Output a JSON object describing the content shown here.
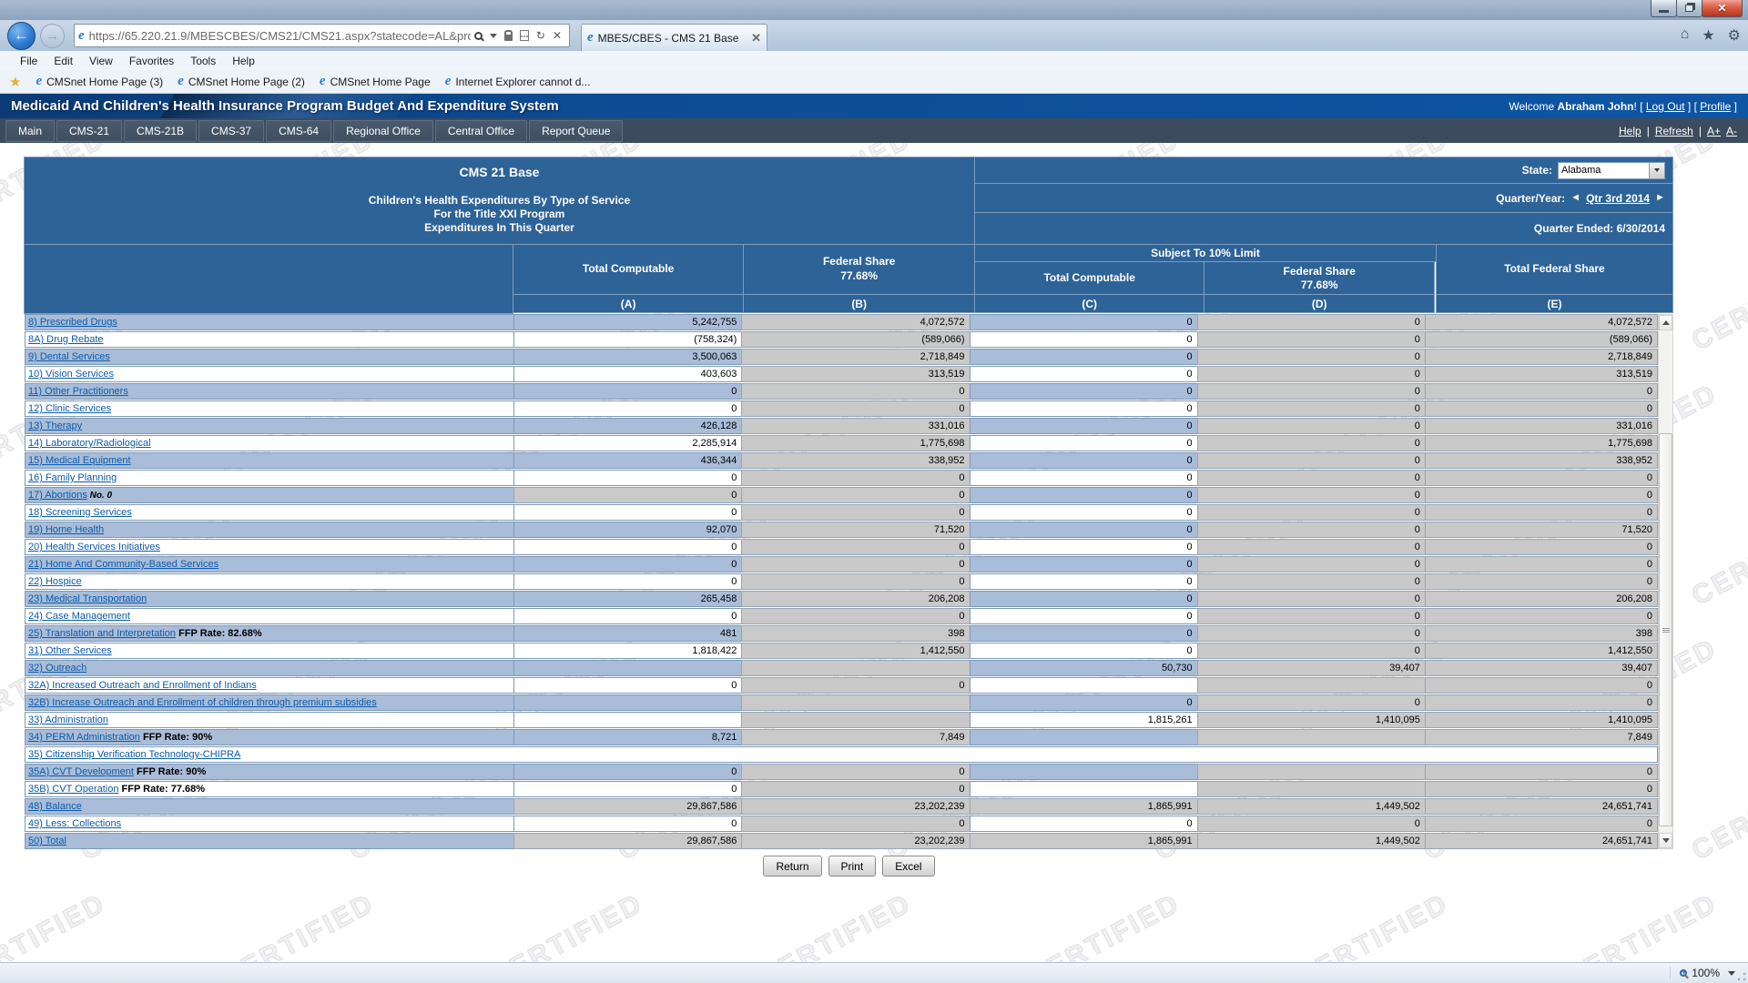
{
  "browser": {
    "url": "https://65.220.21.9/MBESCBES/CMS21/CMS21.aspx?statecode=AL&programco",
    "tab_title": "MBES/CBES - CMS 21 Base",
    "menu_items": [
      "File",
      "Edit",
      "View",
      "Favorites",
      "Tools",
      "Help"
    ],
    "favorites": [
      "CMSnet Home Page (3)",
      "CMSnet Home Page (2)",
      "CMSnet Home Page",
      "Internet Explorer cannot d..."
    ],
    "zoom_level": "100%"
  },
  "header": {
    "title": "Medicaid And Children's Health Insurance Program Budget And Expenditure System",
    "welcome_prefix": "Welcome",
    "user_name": "Abraham John",
    "exclaim": "!",
    "bracket_open": "[",
    "bracket_close": "]",
    "logout_label": "Log Out",
    "profile_label": "Profile"
  },
  "nav": {
    "items": [
      "Main",
      "CMS-21",
      "CMS-21B",
      "CMS-37",
      "CMS-64",
      "Regional Office",
      "Central Office",
      "Report Queue"
    ],
    "help_label": "Help",
    "separator": "|",
    "refresh_label": "Refresh",
    "font_increase": "A+",
    "font_decrease": "A-"
  },
  "report": {
    "title": "CMS 21 Base",
    "subtitle_line1": "Children's Health Expenditures By Type of Service",
    "subtitle_line2": "For the Title XXI Program",
    "subtitle_line3": "Expenditures In This Quarter",
    "state_label": "State:",
    "state_value": "Alabama",
    "quarter_label": "Quarter/Year:",
    "quarter_prev": "◄",
    "quarter_value": "Qtr 3rd 2014",
    "quarter_next": "►",
    "quarter_ended": "Quarter Ended: 6/30/2014",
    "subject_header": "Subject To 10% Limit",
    "col_total_computable": "Total Computable",
    "col_federal_share": "Federal Share",
    "ffp_rate": "77.68%",
    "col_total_federal_share": "Total Federal Share",
    "col_letters": [
      "(A)",
      "(B)",
      "(C)",
      "(D)",
      "(E)"
    ]
  },
  "table": {
    "rows": [
      {
        "label": "8) Prescribed Drugs",
        "cells": [
          {
            "v": "5,242,755",
            "k": "e"
          },
          {
            "v": "4,072,572",
            "k": "g"
          },
          {
            "v": "0",
            "k": "e"
          },
          {
            "v": "0",
            "k": "g"
          },
          {
            "v": "4,072,572",
            "k": "g"
          }
        ]
      },
      {
        "label": "8A) Drug Rebate",
        "cells": [
          {
            "v": "(758,324)",
            "k": "e"
          },
          {
            "v": "(589,066)",
            "k": "g"
          },
          {
            "v": "0",
            "k": "e"
          },
          {
            "v": "0",
            "k": "g"
          },
          {
            "v": "(589,066)",
            "k": "g"
          }
        ]
      },
      {
        "label": "9) Dental Services",
        "cells": [
          {
            "v": "3,500,063",
            "k": "e"
          },
          {
            "v": "2,718,849",
            "k": "g"
          },
          {
            "v": "0",
            "k": "e"
          },
          {
            "v": "0",
            "k": "g"
          },
          {
            "v": "2,718,849",
            "k": "g"
          }
        ]
      },
      {
        "label": "10) Vision Services",
        "cells": [
          {
            "v": "403,603",
            "k": "e"
          },
          {
            "v": "313,519",
            "k": "g"
          },
          {
            "v": "0",
            "k": "e"
          },
          {
            "v": "0",
            "k": "g"
          },
          {
            "v": "313,519",
            "k": "g"
          }
        ]
      },
      {
        "label": "11) Other Practitioners",
        "cells": [
          {
            "v": "0",
            "k": "e"
          },
          {
            "v": "0",
            "k": "g"
          },
          {
            "v": "0",
            "k": "e"
          },
          {
            "v": "0",
            "k": "g"
          },
          {
            "v": "0",
            "k": "g"
          }
        ]
      },
      {
        "label": "12) Clinic Services",
        "cells": [
          {
            "v": "0",
            "k": "e"
          },
          {
            "v": "0",
            "k": "g"
          },
          {
            "v": "0",
            "k": "e"
          },
          {
            "v": "0",
            "k": "g"
          },
          {
            "v": "0",
            "k": "g"
          }
        ]
      },
      {
        "label": "13) Therapy",
        "cells": [
          {
            "v": "426,128",
            "k": "e"
          },
          {
            "v": "331,016",
            "k": "g"
          },
          {
            "v": "0",
            "k": "e"
          },
          {
            "v": "0",
            "k": "g"
          },
          {
            "v": "331,016",
            "k": "g"
          }
        ]
      },
      {
        "label": "14) Laboratory/Radiological",
        "cells": [
          {
            "v": "2,285,914",
            "k": "e"
          },
          {
            "v": "1,775,698",
            "k": "g"
          },
          {
            "v": "0",
            "k": "e"
          },
          {
            "v": "0",
            "k": "g"
          },
          {
            "v": "1,775,698",
            "k": "g"
          }
        ]
      },
      {
        "label": "15) Medical Equipment",
        "cells": [
          {
            "v": "436,344",
            "k": "e"
          },
          {
            "v": "338,952",
            "k": "g"
          },
          {
            "v": "0",
            "k": "e"
          },
          {
            "v": "0",
            "k": "g"
          },
          {
            "v": "338,952",
            "k": "g"
          }
        ]
      },
      {
        "label": "16) Family Planning",
        "cells": [
          {
            "v": "0",
            "k": "e"
          },
          {
            "v": "0",
            "k": "g"
          },
          {
            "v": "0",
            "k": "e"
          },
          {
            "v": "0",
            "k": "g"
          },
          {
            "v": "0",
            "k": "g"
          }
        ]
      },
      {
        "label": "17) Abortions",
        "suffix": "No. 0",
        "cells": [
          {
            "v": "0",
            "k": "g"
          },
          {
            "v": "0",
            "k": "g"
          },
          {
            "v": "0",
            "k": "e"
          },
          {
            "v": "0",
            "k": "g"
          },
          {
            "v": "0",
            "k": "g"
          }
        ]
      },
      {
        "label": "18) Screening Services",
        "cells": [
          {
            "v": "0",
            "k": "e"
          },
          {
            "v": "0",
            "k": "g"
          },
          {
            "v": "0",
            "k": "e"
          },
          {
            "v": "0",
            "k": "g"
          },
          {
            "v": "0",
            "k": "g"
          }
        ]
      },
      {
        "label": "19) Home Health",
        "cells": [
          {
            "v": "92,070",
            "k": "e"
          },
          {
            "v": "71,520",
            "k": "g"
          },
          {
            "v": "0",
            "k": "e"
          },
          {
            "v": "0",
            "k": "g"
          },
          {
            "v": "71,520",
            "k": "g"
          }
        ]
      },
      {
        "label": "20) Health Services Initiatives",
        "cells": [
          {
            "v": "0",
            "k": "e"
          },
          {
            "v": "0",
            "k": "g"
          },
          {
            "v": "0",
            "k": "e"
          },
          {
            "v": "0",
            "k": "g"
          },
          {
            "v": "0",
            "k": "g"
          }
        ]
      },
      {
        "label": "21) Home And Community-Based Services",
        "cells": [
          {
            "v": "0",
            "k": "e"
          },
          {
            "v": "0",
            "k": "g"
          },
          {
            "v": "0",
            "k": "e"
          },
          {
            "v": "0",
            "k": "g"
          },
          {
            "v": "0",
            "k": "g"
          }
        ]
      },
      {
        "label": "22) Hospice",
        "cells": [
          {
            "v": "0",
            "k": "e"
          },
          {
            "v": "0",
            "k": "g"
          },
          {
            "v": "0",
            "k": "e"
          },
          {
            "v": "0",
            "k": "g"
          },
          {
            "v": "0",
            "k": "g"
          }
        ]
      },
      {
        "label": "23) Medical Transportation",
        "cells": [
          {
            "v": "265,458",
            "k": "e"
          },
          {
            "v": "206,208",
            "k": "g"
          },
          {
            "v": "0",
            "k": "e"
          },
          {
            "v": "0",
            "k": "g"
          },
          {
            "v": "206,208",
            "k": "g"
          }
        ]
      },
      {
        "label": "24) Case Management",
        "cells": [
          {
            "v": "0",
            "k": "e"
          },
          {
            "v": "0",
            "k": "g"
          },
          {
            "v": "0",
            "k": "e"
          },
          {
            "v": "0",
            "k": "g"
          },
          {
            "v": "0",
            "k": "g"
          }
        ]
      },
      {
        "label": "25) Translation and Interpretation",
        "suffix": "FFP Rate: 82.68%",
        "cells": [
          {
            "v": "481",
            "k": "e"
          },
          {
            "v": "398",
            "k": "g"
          },
          {
            "v": "0",
            "k": "e"
          },
          {
            "v": "0",
            "k": "g"
          },
          {
            "v": "398",
            "k": "g"
          }
        ]
      },
      {
        "label": "31) Other Services",
        "cells": [
          {
            "v": "1,818,422",
            "k": "e"
          },
          {
            "v": "1,412,550",
            "k": "g"
          },
          {
            "v": "0",
            "k": "e"
          },
          {
            "v": "0",
            "k": "g"
          },
          {
            "v": "1,412,550",
            "k": "g"
          }
        ]
      },
      {
        "label": "32) Outreach",
        "cells": [
          {
            "v": "",
            "k": "e"
          },
          {
            "v": "",
            "k": "g"
          },
          {
            "v": "50,730",
            "k": "e"
          },
          {
            "v": "39,407",
            "k": "g"
          },
          {
            "v": "39,407",
            "k": "g"
          }
        ]
      },
      {
        "label": "32A) Increased Outreach and Enrollment of Indians",
        "cells": [
          {
            "v": "0",
            "k": "e"
          },
          {
            "v": "0",
            "k": "g"
          },
          {
            "v": "",
            "k": "e"
          },
          {
            "v": "",
            "k": "g"
          },
          {
            "v": "0",
            "k": "g"
          }
        ]
      },
      {
        "label": "32B) Increase Outreach and Enrollment of children through premium subsidies",
        "cells": [
          {
            "v": "",
            "k": "e"
          },
          {
            "v": "",
            "k": "g"
          },
          {
            "v": "0",
            "k": "e"
          },
          {
            "v": "0",
            "k": "g"
          },
          {
            "v": "0",
            "k": "g"
          }
        ]
      },
      {
        "label": "33) Administration",
        "cells": [
          {
            "v": "",
            "k": "e"
          },
          {
            "v": "",
            "k": "g"
          },
          {
            "v": "1,815,261",
            "k": "e"
          },
          {
            "v": "1,410,095",
            "k": "g"
          },
          {
            "v": "1,410,095",
            "k": "g"
          }
        ]
      },
      {
        "label": "34) PERM Administration",
        "suffix": "FFP Rate: 90%",
        "cells": [
          {
            "v": "8,721",
            "k": "e"
          },
          {
            "v": "7,849",
            "k": "g"
          },
          {
            "v": "",
            "k": "e"
          },
          {
            "v": "",
            "k": "g"
          },
          {
            "v": "7,849",
            "k": "g"
          }
        ]
      },
      {
        "label": "35) Citizenship Verification Technology-CHIPRA",
        "full": true,
        "cells": []
      },
      {
        "label": "35A) CVT Development",
        "suffix": "FFP Rate: 90%",
        "cells": [
          {
            "v": "0",
            "k": "e"
          },
          {
            "v": "0",
            "k": "g"
          },
          {
            "v": "",
            "k": "e"
          },
          {
            "v": "",
            "k": "g"
          },
          {
            "v": "0",
            "k": "g"
          }
        ]
      },
      {
        "label": "35B) CVT Operation",
        "suffix": "FFP Rate: 77.68%",
        "cells": [
          {
            "v": "0",
            "k": "e"
          },
          {
            "v": "0",
            "k": "g"
          },
          {
            "v": "",
            "k": "e"
          },
          {
            "v": "",
            "k": "g"
          },
          {
            "v": "0",
            "k": "g"
          }
        ]
      },
      {
        "label": "48) Balance",
        "cells": [
          {
            "v": "29,867,586",
            "k": "g"
          },
          {
            "v": "23,202,239",
            "k": "g"
          },
          {
            "v": "1,865,991",
            "k": "g"
          },
          {
            "v": "1,449,502",
            "k": "g"
          },
          {
            "v": "24,651,741",
            "k": "g"
          }
        ]
      },
      {
        "label": "49) Less: Collections",
        "cells": [
          {
            "v": "0",
            "k": "e"
          },
          {
            "v": "0",
            "k": "g"
          },
          {
            "v": "0",
            "k": "e"
          },
          {
            "v": "0",
            "k": "g"
          },
          {
            "v": "0",
            "k": "g"
          }
        ]
      },
      {
        "label": "50) Total",
        "cells": [
          {
            "v": "29,867,586",
            "k": "g"
          },
          {
            "v": "23,202,239",
            "k": "g"
          },
          {
            "v": "1,865,991",
            "k": "g"
          },
          {
            "v": "1,449,502",
            "k": "g"
          },
          {
            "v": "24,651,741",
            "k": "g"
          }
        ]
      }
    ]
  },
  "buttons": {
    "return_label": "Return",
    "print_label": "Print",
    "excel_label": "Excel"
  },
  "watermark": "CERTIFIED",
  "colors": {
    "header_blue": "#2e6398",
    "stripe_blue": "#a9bdd8",
    "computed_gray": "#c9c9c9",
    "navbar_slate": "#3c4c5e",
    "banner_blue": "#0d4c94",
    "link_blue": "#0c5bad"
  }
}
